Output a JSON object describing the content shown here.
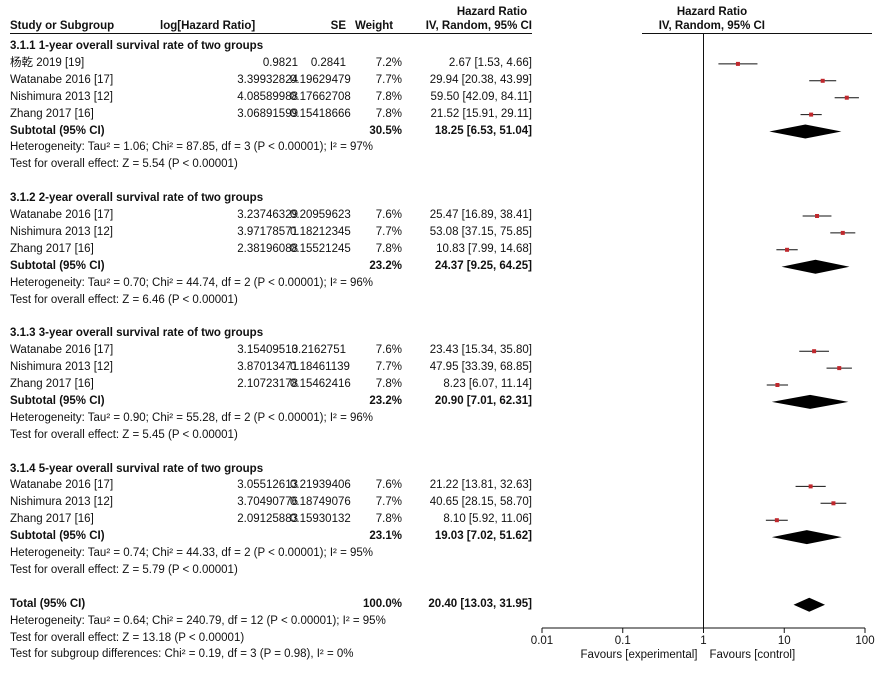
{
  "headers": {
    "study": "Study or Subgroup",
    "loghr": "log[Hazard Ratio]",
    "se": "SE",
    "weight": "Weight",
    "hr_title": "Hazard Ratio",
    "hr_method": "IV, Random, 95% CI",
    "plot_title": "Hazard Ratio",
    "plot_method": "IV, Random, 95% CI"
  },
  "chart_data": {
    "type": "forest",
    "x_scale": "log",
    "x_ticks": [
      0.01,
      0.1,
      1,
      10,
      100
    ],
    "x_tick_labels": [
      "0.01",
      "0.1",
      "1",
      "10",
      "100"
    ],
    "xlim": [
      0.01,
      100
    ],
    "null_line": 1,
    "favours_left": "Favours [experimental]",
    "favours_right": "Favours [control]",
    "subgroups": [
      {
        "title": "3.1.1 1-year overall survival rate of two groups",
        "studies": [
          {
            "name": "杨乾 2019 [19]",
            "loghr": "0.9821",
            "se": "0.2841",
            "weight": "7.2%",
            "ci_text": "2.67 [1.53, 4.66]",
            "hr": 2.67,
            "lo": 1.53,
            "hi": 4.66
          },
          {
            "name": "Watanabe 2016 [17]",
            "loghr": "3.39932824",
            "se": "0.19629479",
            "weight": "7.7%",
            "ci_text": "29.94 [20.38, 43.99]",
            "hr": 29.94,
            "lo": 20.38,
            "hi": 43.99
          },
          {
            "name": "Nishimura 2013 [12]",
            "loghr": "4.08589988",
            "se": "0.17662708",
            "weight": "7.8%",
            "ci_text": "59.50 [42.09, 84.11]",
            "hr": 59.5,
            "lo": 42.09,
            "hi": 84.11
          },
          {
            "name": "Zhang 2017 [16]",
            "loghr": "3.06891599",
            "se": "0.15418666",
            "weight": "7.8%",
            "ci_text": "21.52 [15.91, 29.11]",
            "hr": 21.52,
            "lo": 15.91,
            "hi": 29.11
          }
        ],
        "subtotal": {
          "label": "Subtotal (95% CI)",
          "weight": "30.5%",
          "ci_text": "18.25 [6.53, 51.04]",
          "hr": 18.25,
          "lo": 6.53,
          "hi": 51.04
        },
        "heterogeneity": "Heterogeneity: Tau² = 1.06; Chi² = 87.85, df = 3 (P < 0.00001); I² = 97%",
        "overall": "Test for overall effect: Z = 5.54 (P < 0.00001)"
      },
      {
        "title": "3.1.2 2-year overall survival rate of two groups",
        "studies": [
          {
            "name": "Watanabe 2016 [17]",
            "loghr": "3.23746329",
            "se": "0.20959623",
            "weight": "7.6%",
            "ci_text": "25.47 [16.89, 38.41]",
            "hr": 25.47,
            "lo": 16.89,
            "hi": 38.41
          },
          {
            "name": "Nishimura 2013 [12]",
            "loghr": "3.97178571",
            "se": "0.18212345",
            "weight": "7.7%",
            "ci_text": "53.08 [37.15, 75.85]",
            "hr": 53.08,
            "lo": 37.15,
            "hi": 75.85
          },
          {
            "name": "Zhang 2017 [16]",
            "loghr": "2.38196088",
            "se": "0.15521245",
            "weight": "7.8%",
            "ci_text": "10.83 [7.99, 14.68]",
            "hr": 10.83,
            "lo": 7.99,
            "hi": 14.68
          }
        ],
        "subtotal": {
          "label": "Subtotal (95% CI)",
          "weight": "23.2%",
          "ci_text": "24.37 [9.25, 64.25]",
          "hr": 24.37,
          "lo": 9.25,
          "hi": 64.25
        },
        "heterogeneity": "Heterogeneity: Tau² = 0.70; Chi² = 44.74, df = 2 (P < 0.00001); I² = 96%",
        "overall": "Test for overall effect: Z = 6.46 (P < 0.00001)"
      },
      {
        "title": "3.1.3 3-year overall survival rate of two groups",
        "studies": [
          {
            "name": "Watanabe 2016 [17]",
            "loghr": "3.15409513",
            "se": "0.2162751",
            "weight": "7.6%",
            "ci_text": "23.43 [15.34, 35.80]",
            "hr": 23.43,
            "lo": 15.34,
            "hi": 35.8
          },
          {
            "name": "Nishimura 2013 [12]",
            "loghr": "3.87013471",
            "se": "0.18461139",
            "weight": "7.7%",
            "ci_text": "47.95 [33.39, 68.85]",
            "hr": 47.95,
            "lo": 33.39,
            "hi": 68.85
          },
          {
            "name": "Zhang 2017 [16]",
            "loghr": "2.10723178",
            "se": "0.15462416",
            "weight": "7.8%",
            "ci_text": "8.23 [6.07, 11.14]",
            "hr": 8.23,
            "lo": 6.07,
            "hi": 11.14
          }
        ],
        "subtotal": {
          "label": "Subtotal (95% CI)",
          "weight": "23.2%",
          "ci_text": "20.90 [7.01, 62.31]",
          "hr": 20.9,
          "lo": 7.01,
          "hi": 62.31
        },
        "heterogeneity": "Heterogeneity: Tau² = 0.90; Chi² = 55.28, df = 2 (P < 0.00001); I² = 96%",
        "overall": "Test for overall effect: Z = 5.45 (P < 0.00001)"
      },
      {
        "title": "3.1.4 5-year overall survival rate of two groups",
        "studies": [
          {
            "name": "Watanabe 2016 [17]",
            "loghr": "3.05512613",
            "se": "0.21939406",
            "weight": "7.6%",
            "ci_text": "21.22 [13.81, 32.63]",
            "hr": 21.22,
            "lo": 13.81,
            "hi": 32.63
          },
          {
            "name": "Nishimura 2013 [12]",
            "loghr": "3.70490776",
            "se": "0.18749076",
            "weight": "7.7%",
            "ci_text": "40.65 [28.15, 58.70]",
            "hr": 40.65,
            "lo": 28.15,
            "hi": 58.7
          },
          {
            "name": "Zhang 2017 [16]",
            "loghr": "2.09125883",
            "se": "0.15930132",
            "weight": "7.8%",
            "ci_text": "8.10 [5.92, 11.06]",
            "hr": 8.1,
            "lo": 5.92,
            "hi": 11.06
          }
        ],
        "subtotal": {
          "label": "Subtotal (95% CI)",
          "weight": "23.1%",
          "ci_text": "19.03 [7.02, 51.62]",
          "hr": 19.03,
          "lo": 7.02,
          "hi": 51.62
        },
        "heterogeneity": "Heterogeneity: Tau² = 0.74; Chi² = 44.33, df = 2 (P < 0.00001); I² = 95%",
        "overall": "Test for overall effect: Z = 5.79 (P < 0.00001)"
      }
    ],
    "total": {
      "label": "Total (95% CI)",
      "weight": "100.0%",
      "ci_text": "20.40 [13.03, 31.95]",
      "hr": 20.4,
      "lo": 13.03,
      "hi": 31.95
    },
    "total_heterogeneity": "Heterogeneity: Tau² = 0.64; Chi² = 240.79, df = 12 (P < 0.00001); I² = 95%",
    "total_overall": "Test for overall effect: Z = 13.18 (P < 0.00001)",
    "subgroup_diff": "Test for subgroup differences: Chi² = 0.19, df = 3 (P = 0.98), I² = 0%",
    "colors": {
      "point": "#c0282d",
      "line": "#111111",
      "diamond": "#000000"
    }
  }
}
